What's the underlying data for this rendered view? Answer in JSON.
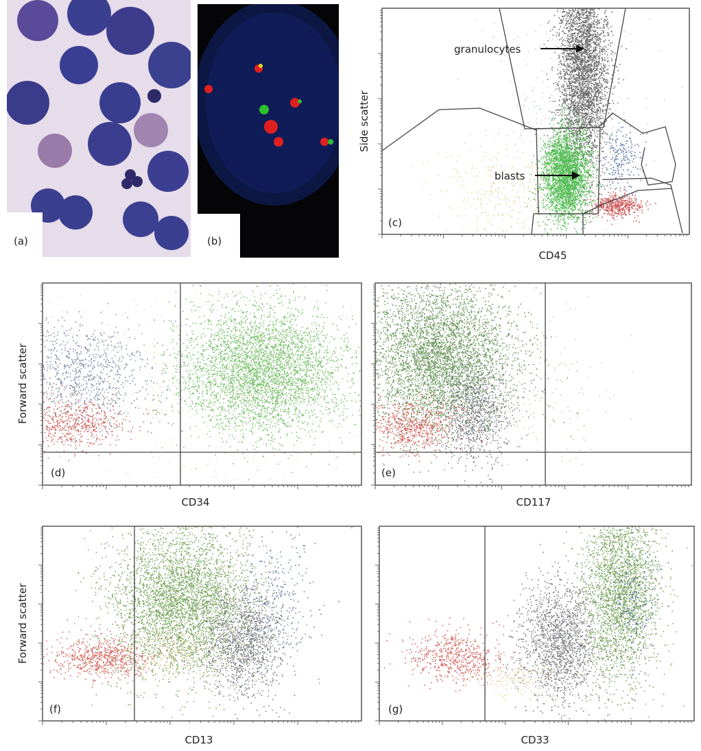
{
  "panels": [
    {
      "label": "(a)"
    },
    {
      "label": "(b)"
    },
    {
      "label": "(c)",
      "x_label": "CD45",
      "y_label": "Side scatter",
      "annotations": [
        "granulocytes",
        "blasts"
      ]
    },
    {
      "label": "(d)",
      "x_label": "CD34",
      "y_label": "Forward scatter"
    },
    {
      "label": "(e)",
      "x_label": "CD117"
    },
    {
      "label": "(f)",
      "x_label": "CD13",
      "y_label": "Forward scatter"
    },
    {
      "label": "(g)",
      "x_label": "CD33"
    }
  ]
}
